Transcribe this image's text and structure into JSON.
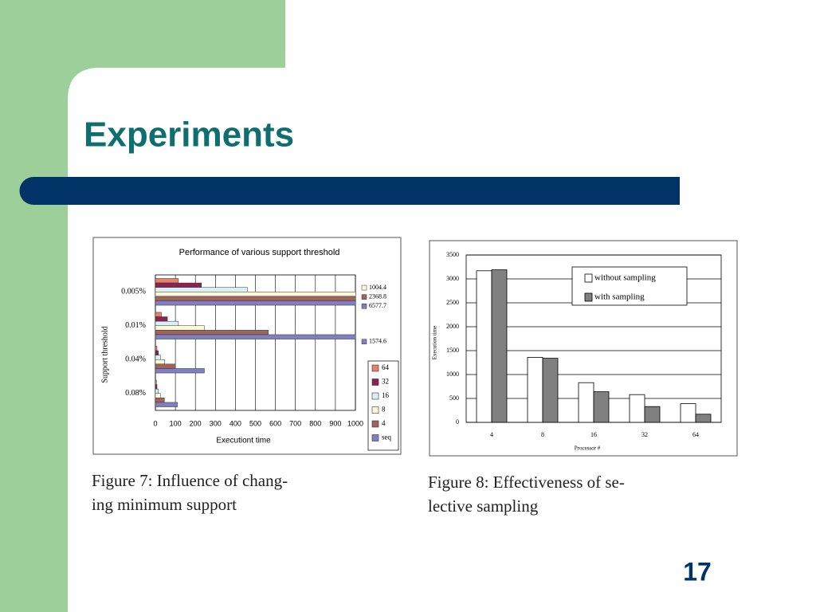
{
  "title": "Experiments",
  "page_number": "17",
  "chart_data": [
    {
      "type": "bar",
      "horizontal": true,
      "title": "Performance of various support threshold",
      "x_label": "Executiont time",
      "y_label": "Support threshold",
      "categories": [
        "0.005%",
        "0.01%",
        "0.04%",
        "0.08%"
      ],
      "series": [
        {
          "name": "64",
          "color": "#e8806a",
          "values": [
            115,
            30,
            8,
            5
          ]
        },
        {
          "name": "32",
          "color": "#8b2252",
          "values": [
            230,
            60,
            15,
            8
          ]
        },
        {
          "name": "16",
          "color": "#d8f0f8",
          "values": [
            460,
            115,
            25,
            15
          ]
        },
        {
          "name": "8",
          "color": "#fffbd8",
          "values": [
            1004.4,
            245,
            45,
            25
          ],
          "value_labels": [
            "1004.4",
            null,
            null,
            null
          ]
        },
        {
          "name": "4",
          "color": "#a0645a",
          "values": [
            2368.8,
            565,
            100,
            45
          ],
          "value_labels": [
            "2368.8",
            null,
            null,
            null
          ]
        },
        {
          "name": "seq",
          "color": "#8080c0",
          "values": [
            6577.7,
            1574.6,
            245,
            110
          ],
          "value_labels": [
            "6577.7",
            "1574.6",
            null,
            null
          ]
        }
      ],
      "xlim": [
        0,
        1000
      ],
      "xticks": [
        0,
        100,
        200,
        300,
        400,
        500,
        600,
        700,
        800,
        900,
        1000
      ],
      "grid": true,
      "legend": "lower right",
      "caption": [
        "Figure 7: Influence of chang-",
        "ing minimum support"
      ]
    },
    {
      "type": "bar",
      "horizontal": false,
      "x_label": "Processor #",
      "y_label": "Execution time",
      "categories": [
        "4",
        "8",
        "16",
        "32",
        "64"
      ],
      "series": [
        {
          "name": "without sampling",
          "color": "#ffffff",
          "values": [
            3170,
            1360,
            830,
            580,
            390
          ]
        },
        {
          "name": "with sampling",
          "color": "#808080",
          "values": [
            3190,
            1340,
            640,
            330,
            170
          ]
        }
      ],
      "ylim": [
        0,
        3500
      ],
      "yticks": [
        0,
        500,
        1000,
        1500,
        2000,
        2500,
        3000,
        3500
      ],
      "grid": true,
      "legend": "upper right",
      "caption": [
        "Figure 8: Effectiveness of se-",
        "lective sampling"
      ]
    }
  ]
}
